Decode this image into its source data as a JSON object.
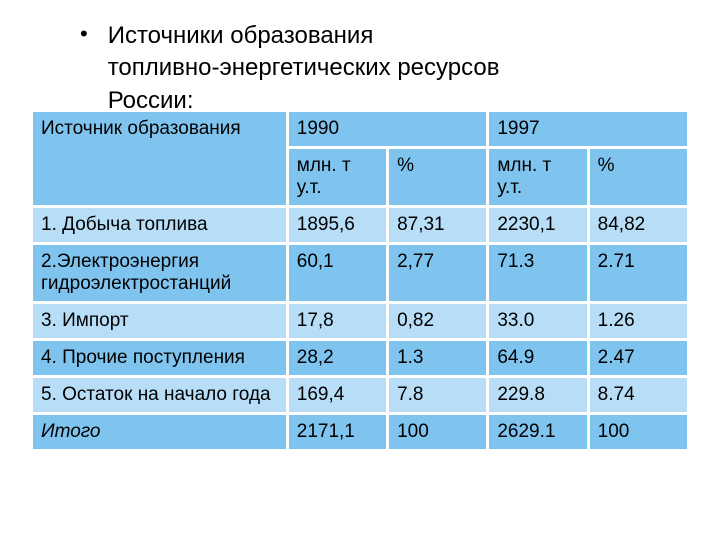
{
  "bullet": {
    "marker": "•",
    "text_l1": "Источники образования",
    "text_l2": "топливно-энергетических ресурсов",
    "text_l3": "России:"
  },
  "table": {
    "header": {
      "source": "Источник образования",
      "y1990": "1990",
      "y1997": "1997"
    },
    "subheader": {
      "mln1": "млн. т у.т.",
      "pct1": "%",
      "mln2": "млн. т у.т.",
      "pct2": "%"
    },
    "rows": [
      {
        "name": "1. Добыча топлива",
        "mln1": "1895,6",
        "pct1": "87,31",
        "mln2": "2230,1",
        "pct2": "84,82"
      },
      {
        "name": "2.Электроэнергия гидроэлектростанций",
        "mln1": "60,1",
        "pct1": "2,77",
        "mln2": "71.3",
        "pct2": "2.71"
      },
      {
        "name": "3. Импорт",
        "mln1": "17,8",
        "pct1": "0,82",
        "mln2": "33.0",
        "pct2": "1.26"
      },
      {
        "name": "4. Прочие поступления",
        "mln1": "28,2",
        "pct1": "1.3",
        "mln2": "64.9",
        "pct2": "2.47"
      },
      {
        "name": "5. Остаток на начало года",
        "mln1": "169,4",
        "pct1": "7.8",
        "mln2": "229.8",
        "pct2": "8.74"
      }
    ],
    "total": {
      "name": "Итого",
      "mln1": "2171,1",
      "pct1": "100",
      "mln2": "2629.1",
      "pct2": "100"
    },
    "colors": {
      "header_bg": "#7fc3ef",
      "row_odd_bg": "#b7ddf7",
      "row_even_bg": "#7fc3ef",
      "border": "#ffffff",
      "text": "#000000"
    }
  }
}
